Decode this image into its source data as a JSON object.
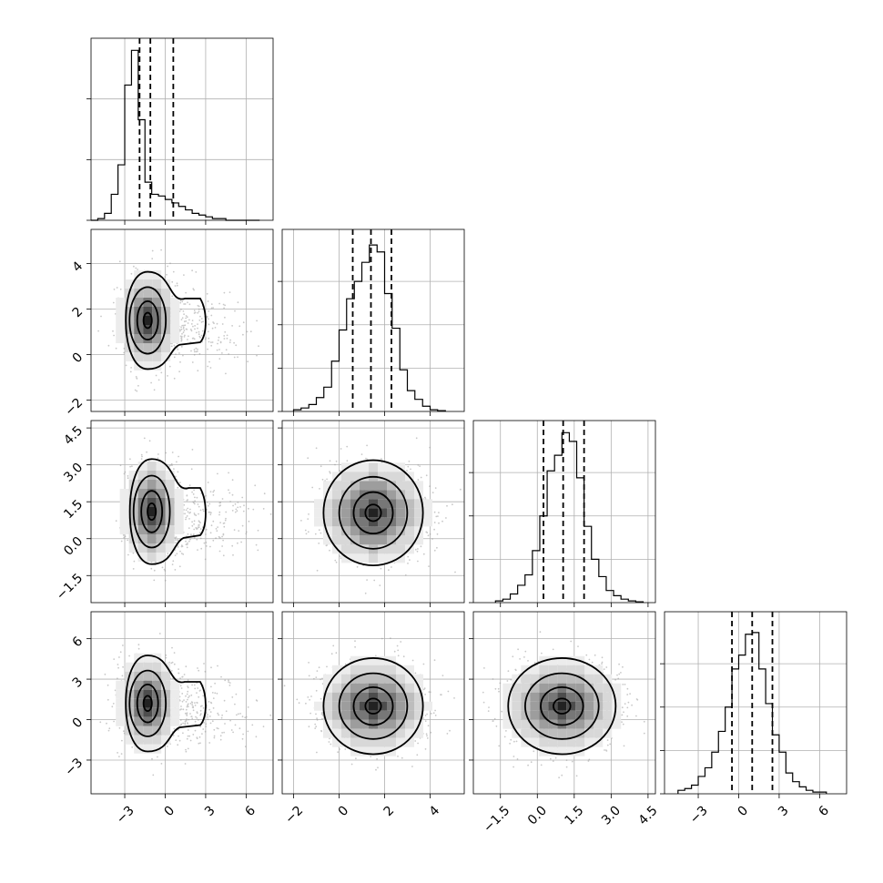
{
  "chart_data": {
    "type": "corner",
    "title": "",
    "grid": true,
    "variables": [
      {
        "range": [
          -5.5,
          8.0
        ],
        "ticks": [
          -3,
          0,
          3,
          6
        ],
        "tick_labels": [
          "−3",
          "0",
          "3",
          "6"
        ],
        "quantiles": [
          -1.9,
          -1.1,
          0.6
        ],
        "hist_bin_edges": [
          -5.5,
          -5.0,
          -4.5,
          -4.0,
          -3.5,
          -3.0,
          -2.5,
          -2.0,
          -1.5,
          -1.0,
          -0.5,
          0.0,
          0.5,
          1.0,
          1.5,
          2.0,
          2.5,
          3.0,
          3.5,
          4.0,
          4.5,
          5.0,
          5.5,
          6.0,
          6.5,
          7.0
        ],
        "hist_counts": [
          0.0,
          0.01,
          0.04,
          0.15,
          0.32,
          0.78,
          0.98,
          0.58,
          0.22,
          0.15,
          0.14,
          0.12,
          0.1,
          0.08,
          0.06,
          0.04,
          0.03,
          0.02,
          0.01,
          0.01,
          0.0,
          0.0,
          0.0,
          0.0,
          0.0
        ],
        "hist_ylim": [
          0,
          1.05
        ],
        "hist_gridlines": [
          0.35,
          0.7
        ]
      },
      {
        "range": [
          -2.5,
          5.5
        ],
        "ticks": [
          -2,
          0,
          2,
          4
        ],
        "tick_labels": [
          "−2",
          "0",
          "2",
          "4"
        ],
        "quantiles": [
          0.6,
          1.4,
          2.3
        ],
        "hist_bin_edges": [
          -2.0,
          -1.67,
          -1.33,
          -1.0,
          -0.67,
          -0.33,
          0.0,
          0.33,
          0.67,
          1.0,
          1.33,
          1.67,
          2.0,
          2.33,
          2.67,
          3.0,
          3.33,
          3.67,
          4.0,
          4.33,
          4.67
        ],
        "hist_counts": [
          0.01,
          0.02,
          0.04,
          0.08,
          0.14,
          0.29,
          0.47,
          0.65,
          0.75,
          0.86,
          0.96,
          0.92,
          0.68,
          0.48,
          0.24,
          0.12,
          0.07,
          0.03,
          0.01,
          0.005
        ],
        "hist_ylim": [
          0,
          1.05
        ],
        "hist_gridlines": [
          0.25,
          0.5,
          0.75
        ]
      },
      {
        "range": [
          -2.6,
          4.8
        ],
        "ticks": [
          -1.5,
          0.0,
          1.5,
          3.0,
          4.5
        ],
        "tick_labels": [
          "−1.5",
          "0.0",
          "1.5",
          "3.0",
          "4.5"
        ],
        "quantiles": [
          0.25,
          1.05,
          1.9
        ],
        "hist_bin_edges": [
          -1.7,
          -1.4,
          -1.1,
          -0.8,
          -0.5,
          -0.2,
          0.1,
          0.4,
          0.7,
          1.0,
          1.3,
          1.6,
          1.9,
          2.2,
          2.5,
          2.8,
          3.1,
          3.4,
          3.7,
          4.0,
          4.3
        ],
        "hist_counts": [
          0.01,
          0.02,
          0.05,
          0.1,
          0.16,
          0.3,
          0.5,
          0.76,
          0.85,
          0.98,
          0.93,
          0.72,
          0.44,
          0.25,
          0.15,
          0.07,
          0.04,
          0.02,
          0.01,
          0.005
        ],
        "hist_ylim": [
          0,
          1.05
        ],
        "hist_gridlines": [
          0.25,
          0.5,
          0.75
        ]
      },
      {
        "range": [
          -5.5,
          8.0
        ],
        "ticks": [
          -3,
          0,
          3,
          6
        ],
        "tick_labels": [
          "−3",
          "0",
          "3",
          "6"
        ],
        "quantiles": [
          -0.5,
          1.0,
          2.5
        ],
        "hist_bin_edges": [
          -4.5,
          -4.0,
          -3.5,
          -3.0,
          -2.5,
          -2.0,
          -1.5,
          -1.0,
          -0.5,
          0.0,
          0.5,
          1.0,
          1.5,
          2.0,
          2.5,
          3.0,
          3.5,
          4.0,
          4.5,
          5.0,
          5.5,
          6.0,
          6.5
        ],
        "hist_counts": [
          0.02,
          0.03,
          0.05,
          0.1,
          0.15,
          0.24,
          0.36,
          0.5,
          0.72,
          0.8,
          0.92,
          0.93,
          0.72,
          0.52,
          0.34,
          0.24,
          0.12,
          0.07,
          0.04,
          0.02,
          0.01,
          0.01
        ],
        "hist_ylim": [
          0,
          1.05
        ],
        "hist_gridlines": [
          0.25,
          0.5,
          0.75
        ]
      }
    ],
    "pair_plots": [
      {
        "x": 0,
        "y": 1,
        "peak": [
          -1.3,
          1.5
        ],
        "spread": [
          0.9,
          0.9
        ],
        "tail_to_x": 3.0
      },
      {
        "x": 0,
        "y": 2,
        "peak": [
          -1.0,
          1.1
        ],
        "spread": [
          0.9,
          0.9
        ],
        "tail_to_x": 3.0
      },
      {
        "x": 1,
        "y": 2,
        "peak": [
          1.5,
          1.05
        ],
        "spread": [
          1.0,
          0.9
        ]
      },
      {
        "x": 0,
        "y": 3,
        "peak": [
          -1.3,
          1.2
        ],
        "spread": [
          0.9,
          1.5
        ],
        "tail_to_x": 3.0
      },
      {
        "x": 1,
        "y": 3,
        "peak": [
          1.5,
          1.0
        ],
        "spread": [
          1.0,
          1.5
        ]
      },
      {
        "x": 2,
        "y": 3,
        "peak": [
          1.0,
          1.0
        ],
        "spread": [
          1.0,
          1.5
        ]
      }
    ]
  }
}
